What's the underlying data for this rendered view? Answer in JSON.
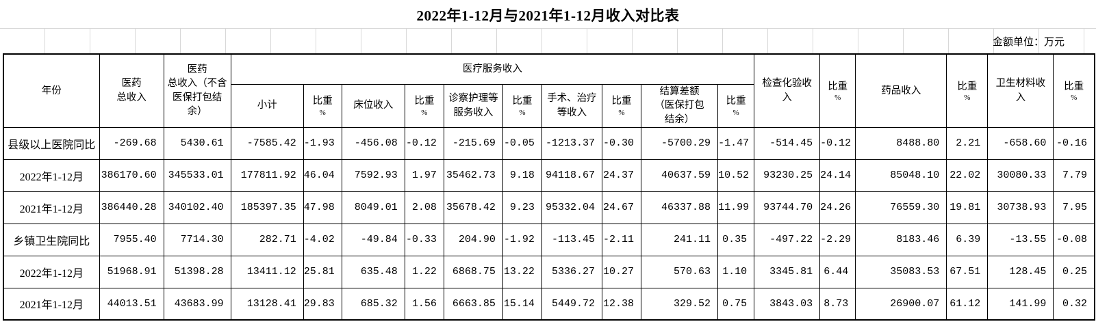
{
  "title": "2022年1-12月与2021年1-12月收入对比表",
  "unit_note": "金额单位：万元",
  "chart_data": {
    "type": "table",
    "title": "2022年1-12月与2021年1-12月收入对比表",
    "unit": "金额单位：万元",
    "header": {
      "year": "年份",
      "total_income": "医药\n总收入",
      "total_income_excl": "医药\n总收入（不含\n医保打包结\n余）",
      "medical_service_group": "医疗服务收入",
      "subtotal": "小计",
      "ratio": "比重",
      "percent": "%",
      "bed_income": "床位收入",
      "exam_nursing_income": "诊察护理等\n服务收入",
      "surgery_income": "手术、治疗\n等收入",
      "settlement_diff": "结算差额\n（医保打包\n结余）",
      "inspection_income": "检查化验收\n入",
      "drug_income": "药品收入",
      "material_income": "卫生材料收\n入"
    },
    "column_order": [
      "医药总收入",
      "医药总收入（不含医保打包结余）",
      "医疗服务收入-小计",
      "比重%",
      "床位收入",
      "比重%",
      "诊察护理等服务收入",
      "比重%",
      "手术、治疗等收入",
      "比重%",
      "结算差额（医保打包结余）",
      "比重%",
      "检查化验收入",
      "比重%",
      "药品收入",
      "比重%",
      "卫生材料收入",
      "比重%"
    ],
    "rows": [
      {
        "label": "县级以上医院同比",
        "values": [
          "-269.68",
          "5430.61",
          "-7585.42",
          "-1.93",
          "-456.08",
          "-0.12",
          "-215.69",
          "-0.05",
          "-1213.37",
          "-0.30",
          "-5700.29",
          "-1.47",
          "-514.45",
          "-0.12",
          "8488.80",
          "2.21",
          "-658.60",
          "-0.16"
        ]
      },
      {
        "label": "2022年1-12月",
        "values": [
          "386170.60",
          "345533.01",
          "177811.92",
          "46.04",
          "7592.93",
          "1.97",
          "35462.73",
          "9.18",
          "94118.67",
          "24.37",
          "40637.59",
          "10.52",
          "93230.25",
          "24.14",
          "85048.10",
          "22.02",
          "30080.33",
          "7.79"
        ]
      },
      {
        "label": "2021年1-12月",
        "values": [
          "386440.28",
          "340102.40",
          "185397.35",
          "47.98",
          "8049.01",
          "2.08",
          "35678.42",
          "9.23",
          "95332.04",
          "24.67",
          "46337.88",
          "11.99",
          "93744.70",
          "24.26",
          "76559.30",
          "19.81",
          "30738.93",
          "7.95"
        ]
      },
      {
        "label": "乡镇卫生院同比",
        "values": [
          "7955.40",
          "7714.30",
          "282.71",
          "-4.02",
          "-49.84",
          "-0.33",
          "204.90",
          "-1.92",
          "-113.45",
          "-2.11",
          "241.11",
          "0.35",
          "-497.22",
          "-2.29",
          "8183.46",
          "6.39",
          "-13.55",
          "-0.08"
        ]
      },
      {
        "label": "2022年1-12月",
        "values": [
          "51968.91",
          "51398.28",
          "13411.12",
          "25.81",
          "635.48",
          "1.22",
          "6868.75",
          "13.22",
          "5336.27",
          "10.27",
          "570.63",
          "1.10",
          "3345.81",
          "6.44",
          "35083.53",
          "67.51",
          "128.45",
          "0.25"
        ]
      },
      {
        "label": "2021年1-12月",
        "values": [
          "44013.51",
          "43683.99",
          "13128.41",
          "29.83",
          "685.32",
          "1.56",
          "6663.85",
          "15.14",
          "5449.72",
          "12.38",
          "329.52",
          "0.75",
          "3843.03",
          "8.73",
          "26900.07",
          "61.12",
          "141.99",
          "0.32"
        ]
      }
    ]
  }
}
